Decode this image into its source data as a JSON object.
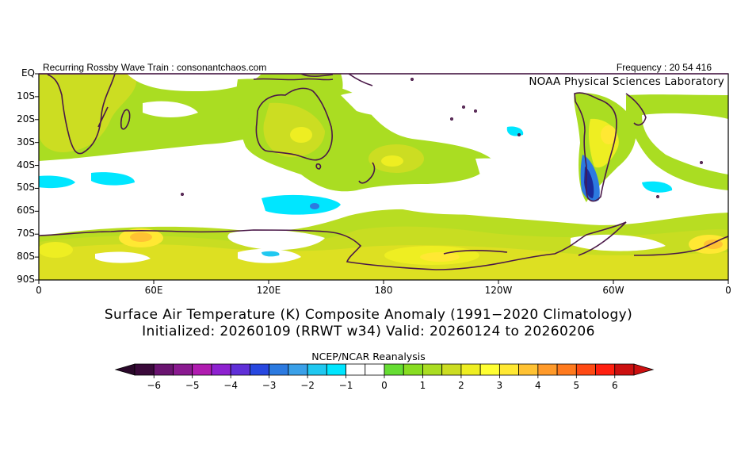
{
  "header": {
    "left_text": "Recurring Rossby Wave Train : consonantchaos.com",
    "right_text": "Frequency : 20 54 416",
    "org": "NOAA Physical Sciences Laboratory"
  },
  "title": {
    "line1": "Surface Air Temperature (K) Composite Anomaly (1991−2020 Climatology)",
    "line2": "Initialized: 20260109 (RRWT w34) Valid: 20260124 to 20260206"
  },
  "source": "NCEP/NCAR Reanalysis",
  "map": {
    "lat_labels": [
      "EQ",
      "10S",
      "20S",
      "30S",
      "40S",
      "50S",
      "60S",
      "70S",
      "80S",
      "90S"
    ],
    "lon_labels": [
      "0",
      "60E",
      "120E",
      "180",
      "120W",
      "60W",
      "0"
    ],
    "lat_range": [
      -90,
      0
    ],
    "lon_range": [
      0,
      360
    ],
    "colors": {
      "coast": "#4a1848",
      "frame": "#000000"
    }
  },
  "colorbar": {
    "labels": [
      "−6",
      "−5",
      "−4",
      "−3",
      "−2",
      "−1",
      "0",
      "1",
      "2",
      "3",
      "4",
      "5",
      "6"
    ],
    "colors": [
      "#3a0a3a",
      "#6a1470",
      "#8a1a90",
      "#b01cb0",
      "#8e22d0",
      "#6030d8",
      "#2848e0",
      "#2c7ae0",
      "#3aa0e8",
      "#20c8f0",
      "#00e6ff",
      "#ffffff",
      "#ffffff",
      "#66dd33",
      "#88dd22",
      "#aadd22",
      "#ccdd22",
      "#eeee22",
      "#ffff33",
      "#ffe833",
      "#ffc233",
      "#ff9a2a",
      "#ff7a1e",
      "#ff4a14",
      "#ff2010",
      "#cc1010"
    ]
  }
}
